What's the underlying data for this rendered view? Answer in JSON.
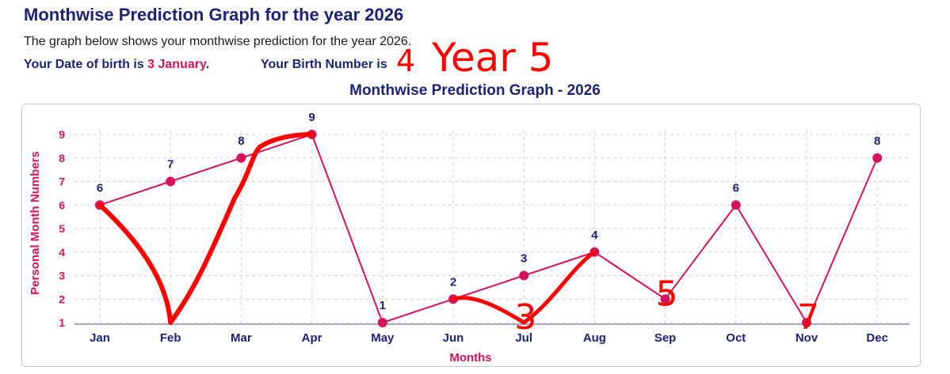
{
  "header": {
    "title": "Monthwise Prediction Graph for the year 2026",
    "description": "The graph below shows your monthwise prediction for the year 2026.",
    "dob_label": "Your Date of birth is ",
    "dob_value": "3 January",
    "dob_suffix": ".",
    "birth_number_label": "Your Birth Number is"
  },
  "annotations": {
    "birth_number": "4",
    "year_label": "Year 5",
    "handwritten_points": [
      {
        "month": "Feb",
        "value": 1
      },
      {
        "month": "Jul",
        "value": 1,
        "label": "3"
      },
      {
        "month": "Sep",
        "value": 2,
        "label": "5"
      },
      {
        "month": "Nov",
        "value": 1,
        "label": "7"
      }
    ]
  },
  "colors": {
    "primary": "#1c2370",
    "accent": "#d4145a",
    "ink": "#ff0000"
  },
  "chart_data": {
    "type": "line",
    "title": "Monthwise Prediction Graph - 2026",
    "xlabel": "Months",
    "ylabel": "Personal Month Numbers",
    "categories": [
      "Jan",
      "Feb",
      "Mar",
      "Apr",
      "May",
      "Jun",
      "Jul",
      "Aug",
      "Sep",
      "Oct",
      "Nov",
      "Dec"
    ],
    "values": [
      6,
      7,
      8,
      9,
      1,
      2,
      3,
      4,
      2,
      6,
      1,
      8
    ],
    "data_labels": [
      "6",
      "7",
      "8",
      "9",
      "1",
      "2",
      "3",
      "4",
      "",
      "6",
      "",
      "8"
    ],
    "yticks": [
      1,
      2,
      3,
      4,
      5,
      6,
      7,
      8,
      9
    ],
    "ylim": [
      1,
      9
    ],
    "grid": true,
    "legend": "none"
  }
}
